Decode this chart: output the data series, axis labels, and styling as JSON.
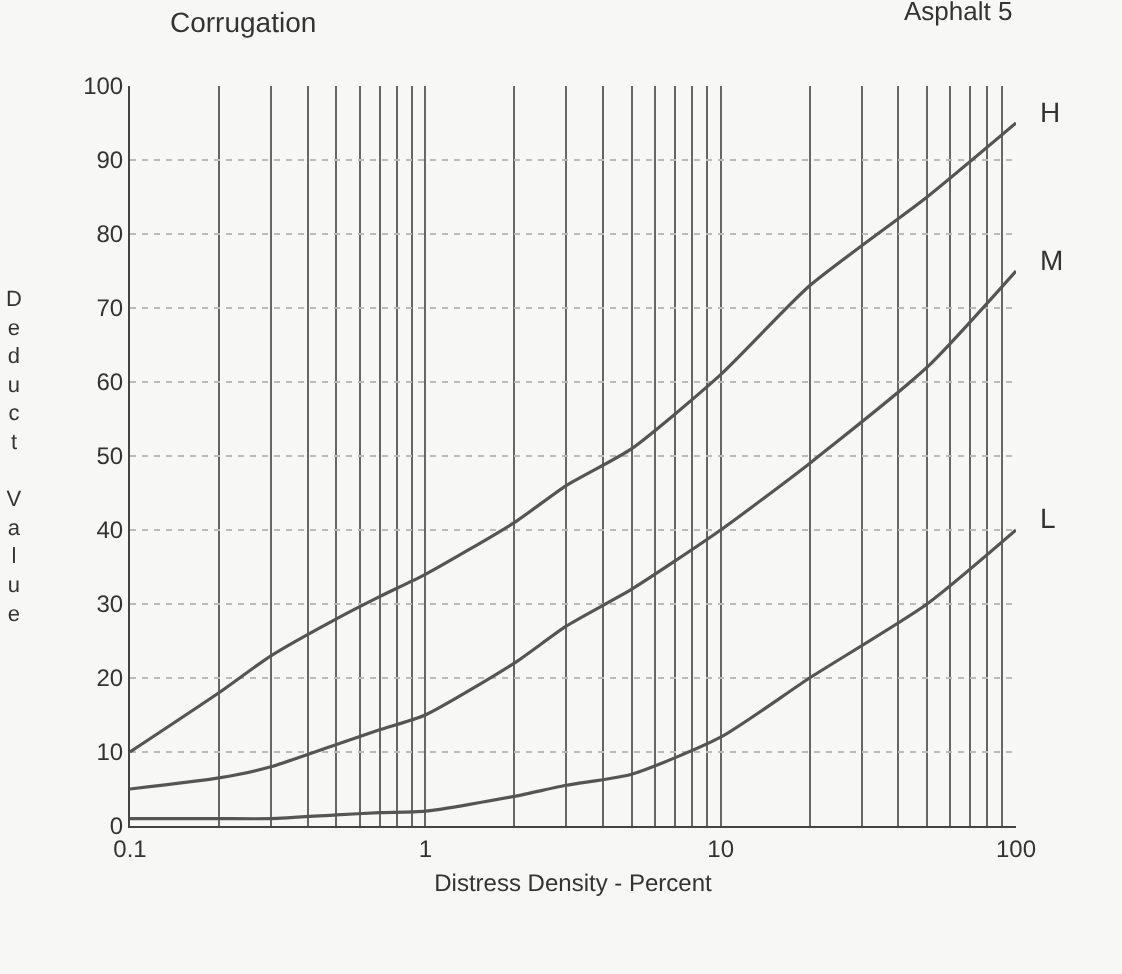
{
  "chart_data": {
    "type": "line",
    "title": "Corrugation",
    "xlabel": "Distress Density - Percent",
    "ylabel": "Deduct Value",
    "annotations": [
      "Asphalt 5"
    ],
    "log": "x",
    "grid": true,
    "legend": false,
    "marker": "none",
    "line_style": "solid",
    "xlim": [
      0.1,
      100
    ],
    "ylim": [
      0,
      100
    ],
    "xticks": [
      0.1,
      {
        "value": 0.2,
        "label": null
      },
      {
        "value": 0.3,
        "label": null
      },
      {
        "value": 0.4,
        "label": null
      },
      {
        "value": 0.5,
        "label": null
      },
      {
        "value": 0.6,
        "label": null
      },
      {
        "value": 0.7,
        "label": null
      },
      {
        "value": 0.8,
        "label": null
      },
      {
        "value": 0.9,
        "label": null
      },
      1,
      {
        "value": 2,
        "label": null
      },
      {
        "value": 3,
        "label": null
      },
      {
        "value": 4,
        "label": null
      },
      {
        "value": 5,
        "label": null
      },
      {
        "value": 6,
        "label": null
      },
      {
        "value": 7,
        "label": null
      },
      {
        "value": 8,
        "label": null
      },
      {
        "value": 9,
        "label": null
      },
      10,
      {
        "value": 20,
        "label": null
      },
      {
        "value": 30,
        "label": null
      },
      {
        "value": 40,
        "label": null
      },
      {
        "value": 50,
        "label": null
      },
      {
        "value": 60,
        "label": null
      },
      {
        "value": 70,
        "label": null
      },
      {
        "value": 80,
        "label": null
      },
      {
        "value": 90,
        "label": null
      },
      100
    ],
    "yticks": [
      0,
      10,
      20,
      30,
      40,
      50,
      60,
      70,
      80,
      90,
      100
    ],
    "x": [
      0.1,
      0.2,
      0.3,
      0.5,
      0.7,
      1,
      2,
      3,
      5,
      10,
      20,
      50,
      100
    ],
    "series": [
      {
        "name": "H",
        "color": "#555555",
        "values": [
          10,
          18,
          23,
          28,
          31,
          34,
          41,
          46,
          51,
          61,
          73,
          85,
          95
        ]
      },
      {
        "name": "M",
        "color": "#555555",
        "values": [
          5,
          6.5,
          8,
          11,
          13,
          15,
          22,
          27,
          32,
          40,
          49,
          62,
          75
        ]
      },
      {
        "name": "L",
        "color": "#555555",
        "values": [
          1,
          1,
          1,
          1.5,
          1.8,
          2,
          4,
          5.5,
          7,
          12,
          20,
          30,
          40
        ]
      }
    ]
  }
}
